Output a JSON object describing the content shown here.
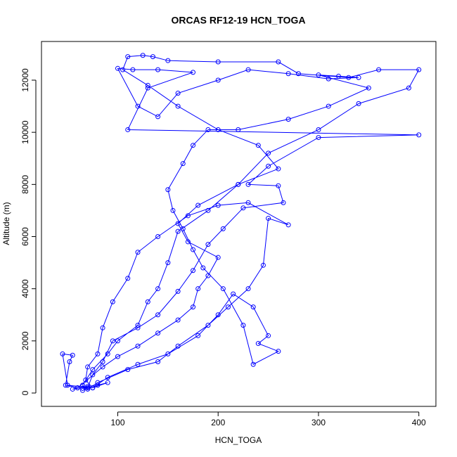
{
  "chart_data": {
    "type": "line",
    "title": "ORCAS RF12-19 HCN_TOGA",
    "xlabel": "HCN_TOGA",
    "ylabel": "Altitude (m)",
    "color": "#0000ff",
    "markers": true,
    "xlim": [
      24,
      417
    ],
    "ylim": [
      -512,
      13483
    ],
    "xticks": [
      100,
      200,
      300,
      400
    ],
    "yticks": [
      0,
      2000,
      4000,
      6000,
      8000,
      10000,
      12000
    ],
    "x": [
      60,
      55,
      70,
      65,
      80,
      90,
      75,
      50,
      45,
      55,
      52,
      48,
      60,
      85,
      100,
      120,
      140,
      160,
      175,
      180,
      190,
      200,
      170,
      160,
      180,
      220,
      260,
      240,
      200,
      160,
      130,
      105,
      110,
      125,
      135,
      150,
      200,
      260,
      280,
      330,
      360,
      400,
      390,
      340,
      300,
      250,
      220,
      190,
      160,
      150,
      140,
      130,
      120,
      100,
      90,
      75,
      65,
      70,
      80,
      110,
      140,
      160,
      190,
      210,
      230,
      245,
      250,
      270,
      230,
      200,
      170,
      140,
      120,
      110,
      95,
      85,
      80,
      70,
      68,
      75,
      90,
      120,
      150,
      180,
      200,
      215,
      235,
      250,
      240,
      260,
      235,
      225,
      205,
      185,
      175,
      165,
      155,
      150,
      165,
      175,
      190,
      220,
      270,
      310,
      350,
      300,
      320,
      340,
      310,
      270,
      230,
      200,
      160,
      140,
      120,
      100,
      115,
      140,
      175,
      130,
      110,
      400,
      300,
      250,
      230,
      260,
      265,
      225,
      205,
      190,
      175,
      160,
      140,
      120,
      95,
      85,
      75,
      70,
      65
    ],
    "values": [
      200,
      150,
      250,
      180,
      300,
      400,
      200,
      300,
      1500,
      1450,
      1200,
      300,
      200,
      1000,
      1400,
      1800,
      2300,
      2800,
      3300,
      4000,
      4500,
      5200,
      5800,
      6500,
      7200,
      8000,
      8600,
      9500,
      10100,
      11000,
      11800,
      12400,
      12900,
      12950,
      12900,
      12750,
      12700,
      12700,
      12250,
      12100,
      12400,
      12400,
      11700,
      11100,
      10100,
      9200,
      8000,
      7000,
      6200,
      5000,
      4000,
      3500,
      2600,
      2000,
      1500,
      900,
      300,
      150,
      400,
      900,
      1200,
      1800,
      2600,
      3300,
      4000,
      4900,
      6700,
      6450,
      7300,
      7200,
      6800,
      6000,
      5400,
      4400,
      3500,
      2500,
      1500,
      1000,
      500,
      200,
      600,
      1100,
      1500,
      2200,
      3000,
      3800,
      3300,
      2200,
      1900,
      1600,
      1100,
      2600,
      4000,
      4800,
      5500,
      6300,
      7000,
      7800,
      8800,
      9500,
      10100,
      10100,
      10500,
      11000,
      11700,
      12200,
      12150,
      12100,
      12050,
      12250,
      12400,
      12000,
      11500,
      10600,
      11000,
      12450,
      12400,
      12400,
      12300,
      11700,
      10100,
      9900,
      9800,
      8700,
      8000,
      7950,
      7300,
      7100,
      6300,
      5700,
      4700,
      3900,
      3000,
      2500,
      2000,
      1200,
      700,
      200,
      100
    ]
  }
}
